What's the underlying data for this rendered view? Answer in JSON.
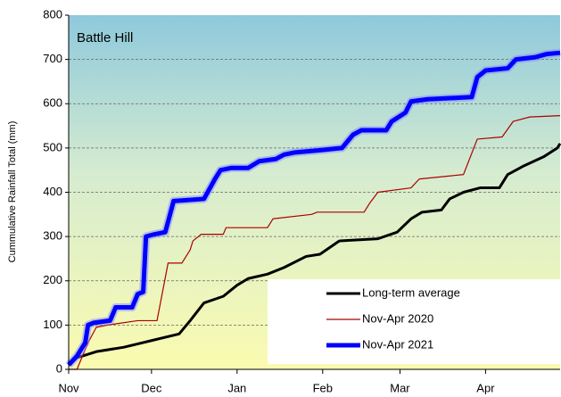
{
  "chart_data": {
    "type": "line",
    "title": "Battle Hill",
    "y_label": "Cummulative Rainfall Total (mm)",
    "xlim": [
      0,
      178
    ],
    "ylim": [
      0,
      800
    ],
    "xticks": [
      {
        "value": 0,
        "label": "Nov"
      },
      {
        "value": 30,
        "label": "Dec"
      },
      {
        "value": 61,
        "label": "Jan"
      },
      {
        "value": 92,
        "label": "Feb"
      },
      {
        "value": 120,
        "label": "Mar"
      },
      {
        "value": 151,
        "label": "Apr"
      }
    ],
    "yticks": [
      0,
      100,
      200,
      300,
      400,
      500,
      600,
      700,
      800
    ],
    "grid": true,
    "legend": "lower right",
    "series": [
      {
        "name": "Long-term average",
        "color": "#000000",
        "x": [
          0,
          2,
          5,
          10,
          20,
          30,
          40,
          44,
          49,
          56,
          61,
          65,
          72,
          78,
          86,
          91,
          98,
          112,
          119,
          124,
          128,
          135,
          138,
          143,
          149,
          156,
          159,
          165,
          172,
          177,
          178
        ],
        "values": [
          10,
          25,
          30,
          40,
          50,
          65,
          80,
          110,
          150,
          165,
          190,
          205,
          215,
          230,
          255,
          260,
          290,
          295,
          310,
          340,
          355,
          360,
          385,
          400,
          410,
          410,
          440,
          460,
          480,
          500,
          510
        ]
      },
      {
        "name": "Nov-Apr 2020",
        "color": "#aa0000",
        "x": [
          0,
          3,
          7,
          10,
          14,
          25,
          32,
          36,
          41,
          44,
          45,
          48,
          56,
          57,
          72,
          74,
          88,
          90,
          107,
          109,
          112,
          124,
          127,
          143,
          148,
          157,
          161,
          167,
          178
        ],
        "values": [
          0,
          0,
          60,
          95,
          100,
          110,
          110,
          240,
          240,
          270,
          290,
          305,
          305,
          320,
          320,
          340,
          350,
          355,
          355,
          375,
          400,
          410,
          430,
          440,
          520,
          525,
          560,
          570,
          573
        ]
      },
      {
        "name": "Nov-Apr 2021",
        "color": "#0000ff",
        "x": [
          0,
          3,
          6,
          7,
          9,
          15,
          17,
          23,
          25,
          27,
          28,
          31,
          35,
          38,
          49,
          53,
          55,
          59,
          65,
          69,
          75,
          78,
          82,
          91,
          99,
          103,
          106,
          115,
          117,
          122,
          124,
          130,
          146,
          148,
          151,
          159,
          162,
          169,
          173,
          178
        ],
        "values": [
          10,
          30,
          60,
          100,
          105,
          110,
          140,
          140,
          170,
          175,
          300,
          305,
          310,
          380,
          385,
          430,
          450,
          455,
          455,
          470,
          475,
          485,
          490,
          495,
          500,
          530,
          540,
          540,
          560,
          580,
          605,
          610,
          615,
          660,
          675,
          680,
          700,
          705,
          712,
          715
        ]
      }
    ]
  }
}
